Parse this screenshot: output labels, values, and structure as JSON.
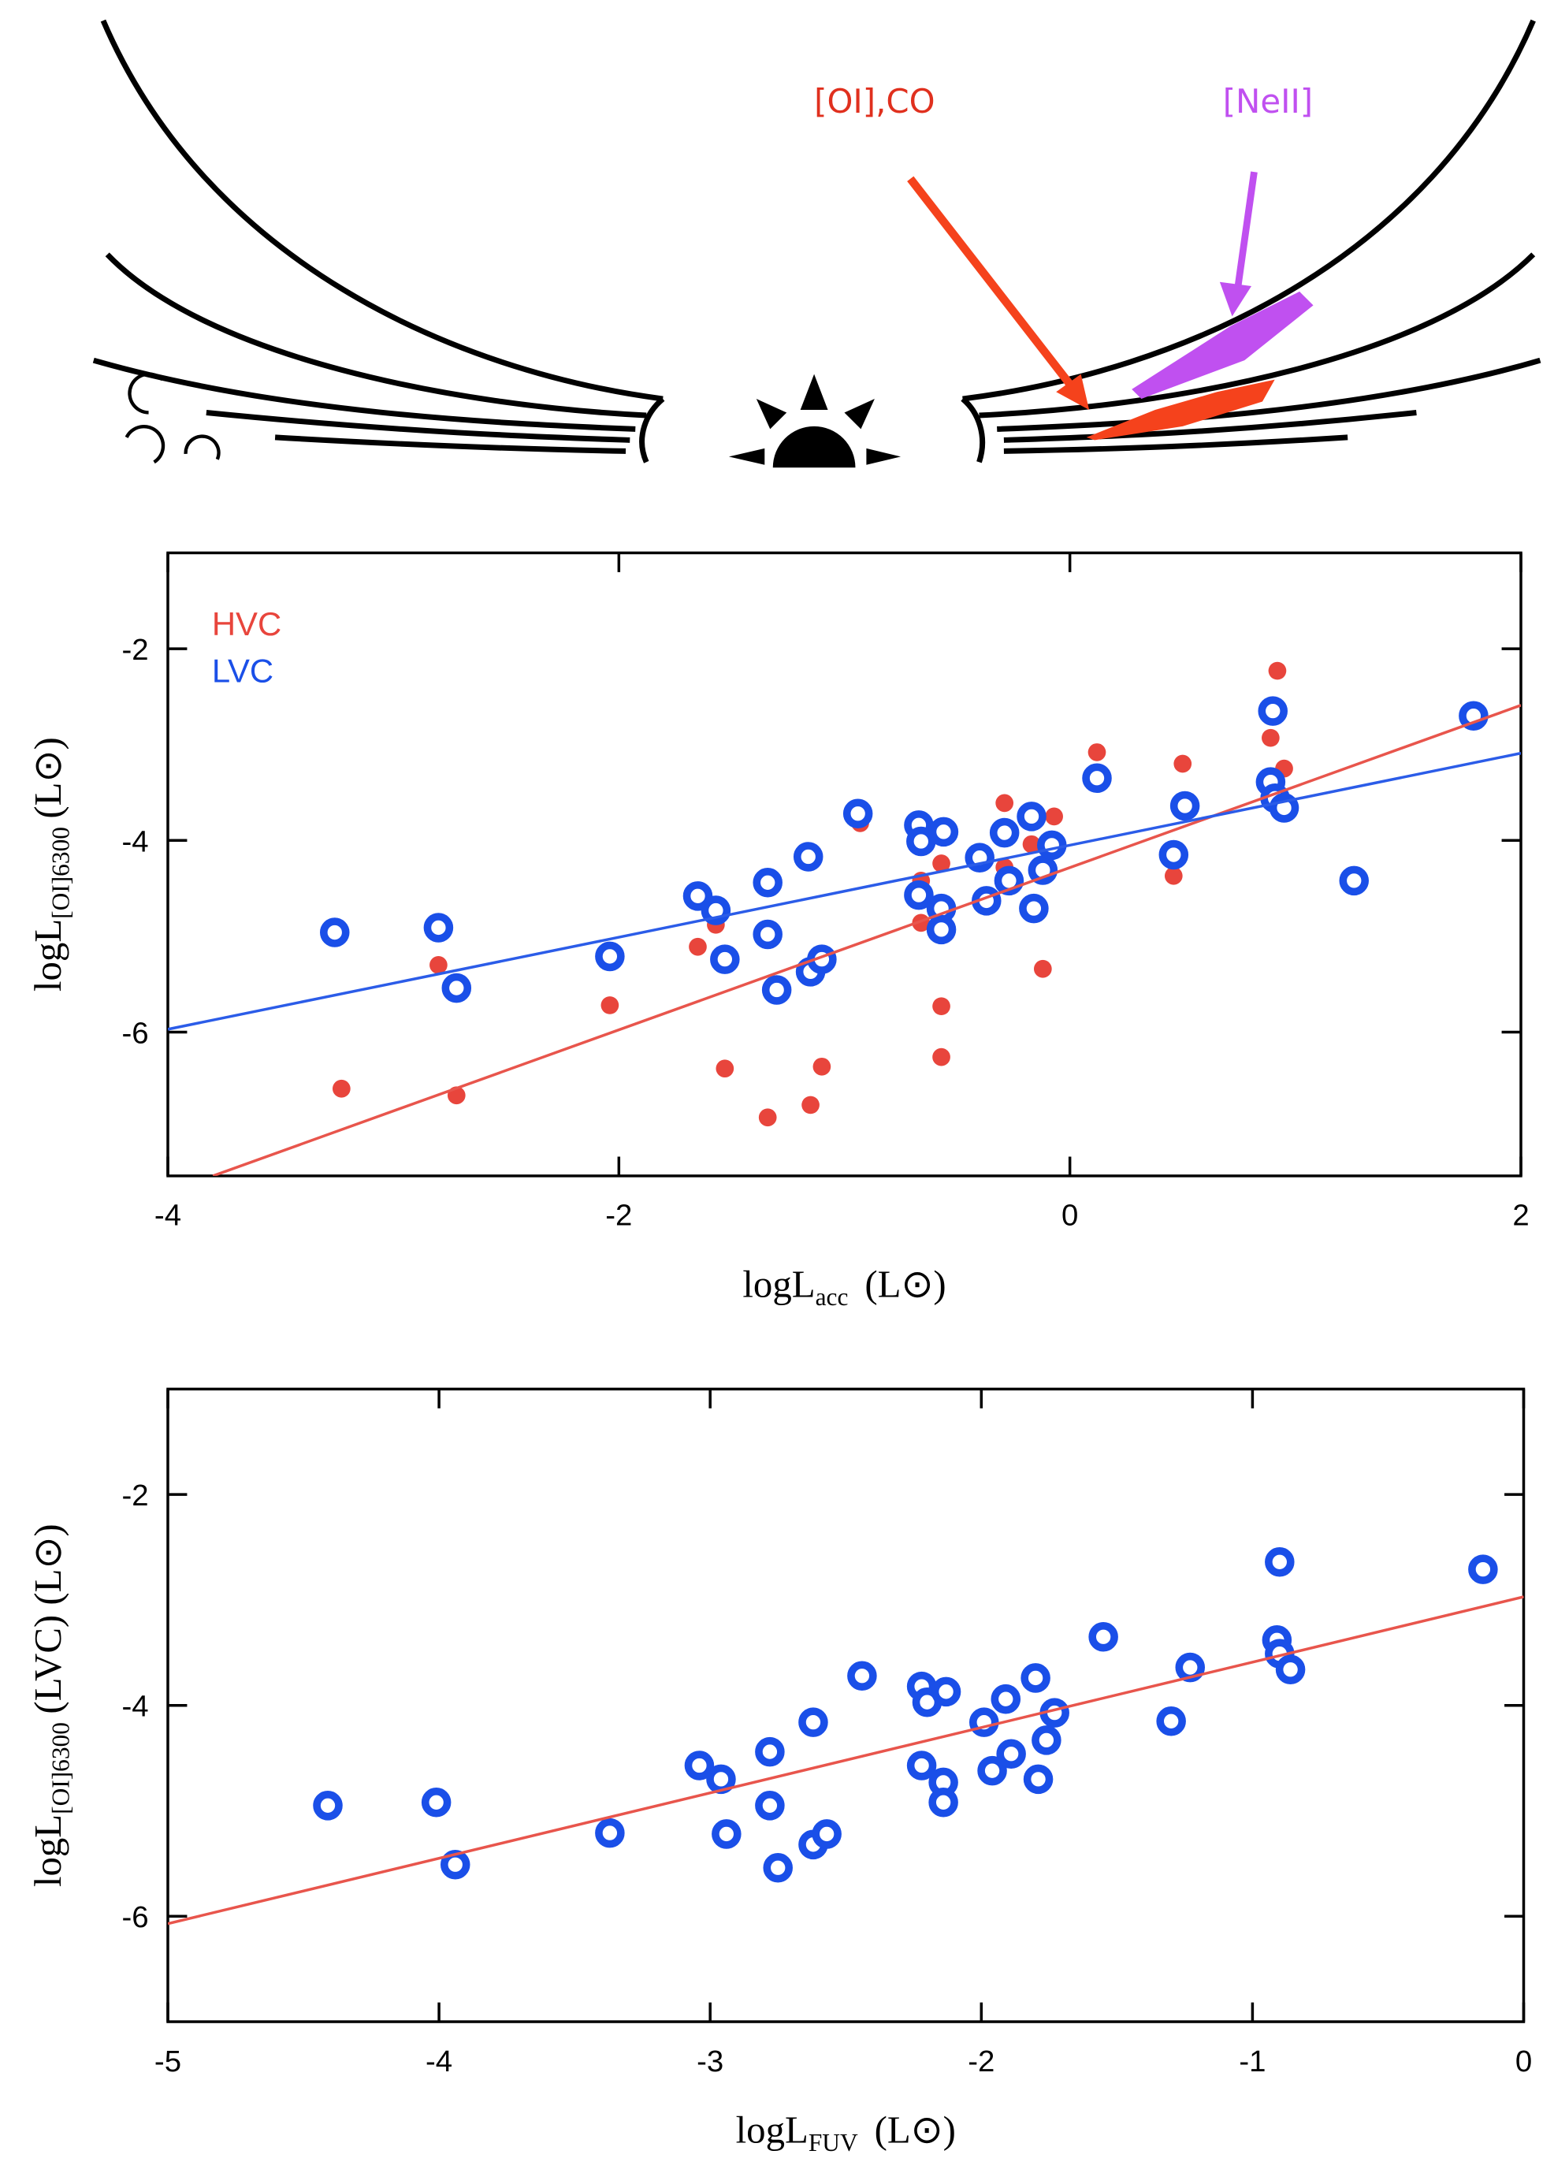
{
  "diagram": {
    "labels": [
      "[OI],CO",
      "[NeII]"
    ]
  },
  "chart_data": [
    {
      "type": "scatter",
      "x_label": [
        "logL",
        "acc",
        "(L⊙)"
      ],
      "y_label": [
        "logL",
        "[OI]6300",
        "(L⊙)"
      ],
      "xlim": [
        -4,
        2
      ],
      "xticks": [
        -4,
        -2,
        0,
        2
      ],
      "ylim": [
        -7.5,
        -1
      ],
      "yticks": [
        -2,
        -4,
        -6
      ],
      "legend": "upper left",
      "series": [
        {
          "name": "HVC",
          "color": "#e8453c",
          "marker": "dot",
          "x": [
            0.92,
            0.89,
            0.95,
            0.89,
            0.5,
            0.12,
            -0.07,
            -0.17,
            -0.29,
            -0.29,
            -0.57,
            -0.66,
            -0.66,
            -0.57,
            -0.57,
            -0.12,
            0.46,
            -0.93,
            -1.15,
            -1.15,
            -1.1,
            -1.34,
            -1.53,
            -1.57,
            -1.65,
            -2.04,
            -2.8,
            -2.72,
            -3.23
          ],
          "values": [
            -2.23,
            -2.93,
            -3.25,
            -3.54,
            -3.2,
            -3.08,
            -3.75,
            -4.04,
            -3.61,
            -4.28,
            -4.24,
            -4.42,
            -4.86,
            -5.73,
            -6.26,
            -5.34,
            -4.37,
            -3.82,
            -4.2,
            -6.76,
            -6.36,
            -6.89,
            -6.38,
            -4.88,
            -5.11,
            -5.72,
            -5.3,
            -6.66,
            -6.59
          ]
        },
        {
          "name": "LVC",
          "color": "#1a4fe8",
          "marker": "ring",
          "x": [
            -3.26,
            -2.8,
            -2.72,
            -2.04,
            -1.65,
            -1.57,
            -1.53,
            -1.34,
            -1.34,
            -1.3,
            -1.15,
            -1.1,
            -1.16,
            -0.94,
            -0.67,
            -0.66,
            -0.56,
            -0.67,
            -0.57,
            -0.57,
            -0.4,
            -0.37,
            -0.29,
            -0.27,
            -0.17,
            -0.16,
            -0.12,
            -0.08,
            0.12,
            0.46,
            0.51,
            0.89,
            0.9,
            0.91,
            0.95,
            1.26,
            1.79
          ],
          "values": [
            -4.96,
            -4.91,
            -5.54,
            -5.21,
            -4.58,
            -4.73,
            -5.24,
            -4.44,
            -4.98,
            -5.56,
            -5.37,
            -5.24,
            -4.17,
            -3.72,
            -3.84,
            -4.01,
            -3.91,
            -4.57,
            -4.71,
            -4.93,
            -4.18,
            -4.63,
            -3.92,
            -4.42,
            -3.75,
            -4.71,
            -4.31,
            -4.05,
            -3.35,
            -4.15,
            -3.64,
            -3.39,
            -2.65,
            -3.56,
            -3.66,
            -4.42,
            -2.7
          ]
        }
      ],
      "fit_lines": [
        {
          "color": "#e8554c",
          "x": [
            -3.8,
            2
          ],
          "values": [
            -7.5,
            -2.59
          ]
        },
        {
          "color": "#2b5ce8",
          "x": [
            -4,
            2
          ],
          "values": [
            -5.97,
            -3.09
          ]
        }
      ]
    },
    {
      "type": "scatter",
      "x_label": [
        "logL",
        "FUV",
        "(L⊙)"
      ],
      "y_label": [
        "logL",
        "[OI]6300",
        "(LVC) (L⊙)"
      ],
      "xlim": [
        -5,
        0
      ],
      "xticks": [
        -5,
        -4,
        -3,
        -2,
        -1,
        0
      ],
      "ylim": [
        -7,
        -1
      ],
      "yticks": [
        -2,
        -4,
        -6
      ],
      "series": [
        {
          "color": "#1a4fe8",
          "marker": "ring",
          "x": [
            -4.41,
            -4.01,
            -3.94,
            -3.37,
            -3.04,
            -2.96,
            -2.94,
            -2.78,
            -2.78,
            -2.75,
            -2.62,
            -2.57,
            -2.62,
            -2.44,
            -2.22,
            -2.2,
            -2.13,
            -2.22,
            -2.14,
            -2.14,
            -1.99,
            -1.96,
            -1.91,
            -1.89,
            -1.8,
            -1.79,
            -1.76,
            -1.73,
            -1.55,
            -1.3,
            -1.23,
            -0.91,
            -0.9,
            -0.9,
            -0.86,
            -0.15
          ],
          "values": [
            -4.95,
            -4.92,
            -5.51,
            -5.21,
            -4.57,
            -4.7,
            -5.22,
            -4.44,
            -4.95,
            -5.54,
            -5.32,
            -5.22,
            -4.16,
            -3.72,
            -3.82,
            -3.97,
            -3.87,
            -4.57,
            -4.73,
            -4.92,
            -4.16,
            -4.62,
            -3.94,
            -4.46,
            -3.74,
            -4.7,
            -4.33,
            -4.07,
            -3.35,
            -4.15,
            -3.64,
            -3.38,
            -2.64,
            -3.51,
            -3.66,
            -2.71
          ]
        }
      ],
      "fit_lines": [
        {
          "color": "#e8554c",
          "x": [
            -5,
            0
          ],
          "values": [
            -6.07,
            -2.97
          ]
        }
      ]
    }
  ]
}
